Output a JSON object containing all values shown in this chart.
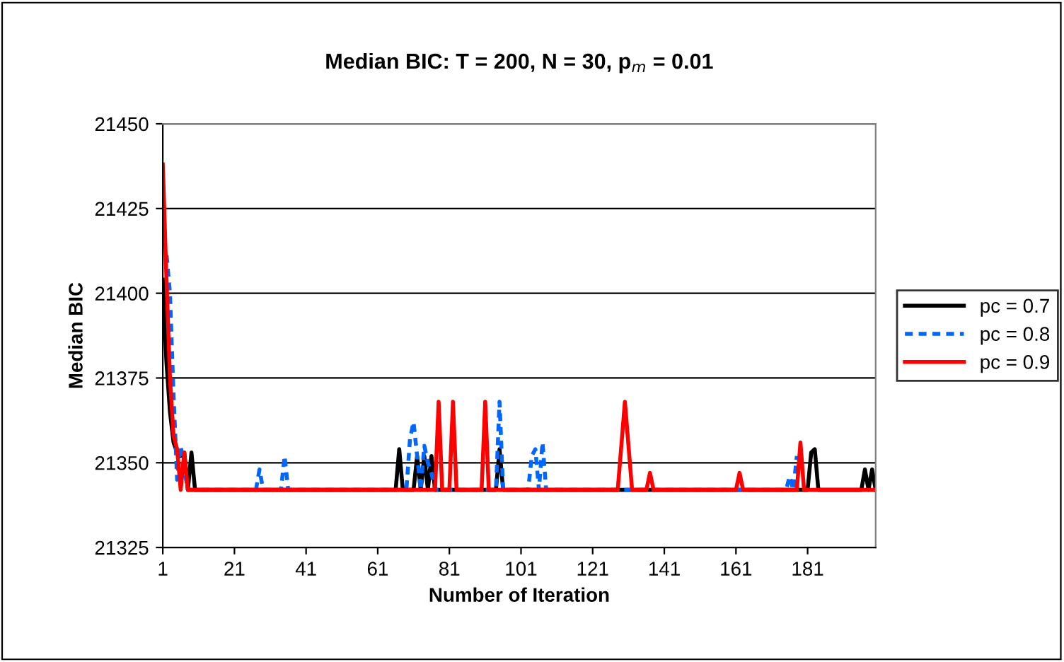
{
  "chart_data": {
    "type": "line",
    "title": "Median BIC: T = 200, N = 30, p$_{m}$ = 0.01",
    "xlabel": "Number of Iteration",
    "ylabel": "Median BIC",
    "xlim": [
      1,
      200
    ],
    "xticks": [
      1,
      21,
      41,
      61,
      81,
      101,
      121,
      141,
      161,
      181
    ],
    "ylim": [
      21325,
      21450
    ],
    "yticks": [
      21325,
      21350,
      21375,
      21400,
      21425,
      21450
    ],
    "grid": "y",
    "legend": "right",
    "marker": "none",
    "series": [
      {
        "name": "pc = 0.7",
        "color": "#000000",
        "line_style": "solid",
        "x": [
          1,
          2,
          3,
          4,
          5,
          6,
          7,
          8,
          9,
          10,
          66,
          67,
          68,
          71,
          72,
          73,
          74,
          75,
          76,
          77,
          94,
          95,
          96,
          181,
          182,
          183,
          184,
          185,
          196,
          197,
          198,
          199,
          200
        ],
        "values": [
          21404,
          21380,
          21365,
          21356,
          21353,
          21352,
          21353,
          21342,
          21353,
          21342,
          21342,
          21354,
          21342,
          21342,
          21352,
          21342,
          21352,
          21342,
          21352,
          21342,
          21342,
          21354,
          21342,
          21342,
          21353,
          21354,
          21342,
          21342,
          21342,
          21348,
          21342,
          21348,
          21342
        ]
      },
      {
        "name": "pc = 0.8",
        "color": "#0066ff",
        "line_style": "dashed",
        "x": [
          2,
          3,
          4,
          5,
          6,
          7,
          8,
          27,
          28,
          29,
          34,
          35,
          36,
          69,
          70,
          71,
          72,
          73,
          74,
          75,
          76,
          77,
          94,
          95,
          96,
          103,
          104,
          105,
          106,
          107,
          108,
          175,
          176,
          177,
          178
        ],
        "values": [
          21412,
          21400,
          21370,
          21345,
          21355,
          21348,
          21342,
          21342,
          21348,
          21342,
          21342,
          21352,
          21342,
          21342,
          21357,
          21362,
          21352,
          21342,
          21355,
          21350,
          21347,
          21342,
          21342,
          21368,
          21342,
          21342,
          21352,
          21354,
          21342,
          21356,
          21342,
          21342,
          21346,
          21342,
          21352
        ]
      },
      {
        "name": "pc = 0.9",
        "color": "#ff0000",
        "line_style": "solid",
        "x": [
          1,
          2,
          3,
          4,
          5,
          6,
          7,
          8,
          77,
          78,
          79,
          81,
          82,
          83,
          90,
          91,
          92,
          128,
          130,
          132,
          136,
          137,
          138,
          161,
          162,
          163,
          178,
          179,
          180,
          200
        ],
        "values": [
          21438,
          21405,
          21375,
          21358,
          21354,
          21342,
          21353,
          21342,
          21342,
          21368,
          21342,
          21342,
          21368,
          21342,
          21342,
          21368,
          21342,
          21342,
          21368,
          21342,
          21342,
          21347,
          21342,
          21342,
          21347,
          21342,
          21342,
          21356,
          21342,
          21342
        ]
      }
    ]
  }
}
